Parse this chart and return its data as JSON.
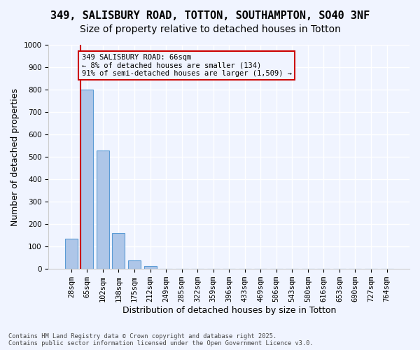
{
  "title_line1": "349, SALISBURY ROAD, TOTTON, SOUTHAMPTON, SO40 3NF",
  "title_line2": "Size of property relative to detached houses in Totton",
  "xlabel": "Distribution of detached houses by size in Totton",
  "ylabel": "Number of detached properties",
  "categories": [
    "28sqm",
    "65sqm",
    "102sqm",
    "138sqm",
    "175sqm",
    "212sqm",
    "249sqm",
    "285sqm",
    "322sqm",
    "359sqm",
    "396sqm",
    "433sqm",
    "469sqm",
    "506sqm",
    "543sqm",
    "580sqm",
    "616sqm",
    "653sqm",
    "690sqm",
    "727sqm",
    "764sqm"
  ],
  "bar_values": [
    135,
    800,
    530,
    160,
    38,
    12,
    0,
    0,
    0,
    0,
    0,
    0,
    0,
    0,
    0,
    0,
    0,
    0,
    0,
    0,
    0
  ],
  "bar_color": "#aec6e8",
  "bar_edge_color": "#5b9bd5",
  "ylim": [
    0,
    1000
  ],
  "yticks": [
    0,
    100,
    200,
    300,
    400,
    500,
    600,
    700,
    800,
    900,
    1000
  ],
  "vline_x": 0.6,
  "vline_color": "#cc0000",
  "annotation_text": "349 SALISBURY ROAD: 66sqm\n← 8% of detached houses are smaller (134)\n91% of semi-detached houses are larger (1,509) →",
  "annotation_box_color": "#cc0000",
  "background_color": "#f0f4ff",
  "grid_color": "#ffffff",
  "footer_line1": "Contains HM Land Registry data © Crown copyright and database right 2025.",
  "footer_line2": "Contains public sector information licensed under the Open Government Licence v3.0.",
  "title_fontsize": 11,
  "subtitle_fontsize": 10,
  "tick_fontsize": 7.5,
  "ylabel_fontsize": 9,
  "xlabel_fontsize": 9
}
